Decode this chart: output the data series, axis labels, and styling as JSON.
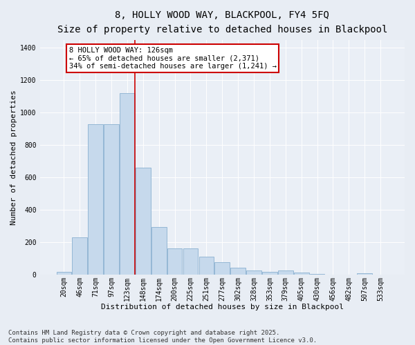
{
  "title": "8, HOLLY WOOD WAY, BLACKPOOL, FY4 5FQ",
  "subtitle": "Size of property relative to detached houses in Blackpool",
  "xlabel": "Distribution of detached houses by size in Blackpool",
  "ylabel": "Number of detached properties",
  "footnote": "Contains HM Land Registry data © Crown copyright and database right 2025.\nContains public sector information licensed under the Open Government Licence v3.0.",
  "categories": [
    "20sqm",
    "46sqm",
    "71sqm",
    "97sqm",
    "123sqm",
    "148sqm",
    "174sqm",
    "200sqm",
    "225sqm",
    "251sqm",
    "277sqm",
    "302sqm",
    "328sqm",
    "353sqm",
    "379sqm",
    "405sqm",
    "430sqm",
    "456sqm",
    "482sqm",
    "507sqm",
    "533sqm"
  ],
  "values": [
    18,
    228,
    930,
    930,
    1120,
    660,
    295,
    160,
    160,
    110,
    75,
    42,
    25,
    18,
    25,
    10,
    5,
    0,
    0,
    8,
    0
  ],
  "bar_color": "#c6d9ec",
  "bar_edge_color": "#8ab0d0",
  "vline_color": "#cc0000",
  "vline_x": 4.5,
  "annotation_text": "8 HOLLY WOOD WAY: 126sqm\n← 65% of detached houses are smaller (2,371)\n34% of semi-detached houses are larger (1,241) →",
  "annotation_box_color": "#cc0000",
  "ylim": [
    0,
    1450
  ],
  "yticks": [
    0,
    200,
    400,
    600,
    800,
    1000,
    1200,
    1400
  ],
  "bg_color": "#e8edf4",
  "plot_bg_color": "#eaeff6",
  "grid_color": "#ffffff",
  "title_fontsize": 10,
  "subtitle_fontsize": 9,
  "axis_label_fontsize": 8,
  "tick_fontsize": 7,
  "annotation_fontsize": 7.5,
  "footnote_fontsize": 6.5
}
